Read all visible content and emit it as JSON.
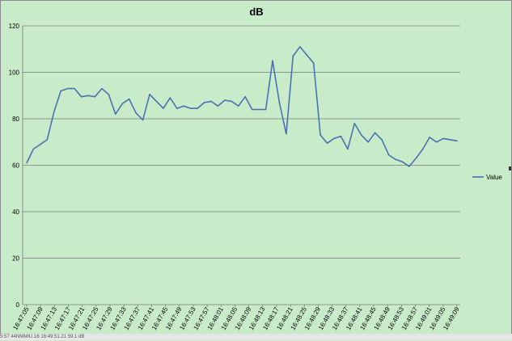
{
  "chart_data": {
    "type": "line",
    "title": "dB",
    "xlabel": "",
    "ylabel": "",
    "ylim": [
      0,
      120
    ],
    "yticks": [
      0,
      20,
      40,
      60,
      80,
      100,
      120
    ],
    "grid": true,
    "legend_position": "right",
    "x_tick_labels": [
      "16:47:05",
      "16:47:09",
      "16:47:13",
      "16:47:17",
      "16:47:21",
      "16:47:25",
      "16:47:29",
      "16:47:33",
      "16:47:37",
      "16:47:41",
      "16:47:45",
      "16:47:49",
      "16:47:53",
      "16:47:57",
      "16:48:01",
      "16:48:05",
      "16:48:09",
      "16:48:13",
      "16:48:17",
      "16:48:21",
      "16:48:25",
      "16:48:29",
      "16:48:33",
      "16:48:37",
      "16:48:41",
      "16:48:45",
      "16:48:49",
      "16:48:53",
      "16:48:57",
      "16:49:01",
      "16:49:05",
      "16:49:09"
    ],
    "series": [
      {
        "name": "Value",
        "color": "#4a72b0",
        "values": [
          61,
          67,
          69,
          71,
          83,
          92,
          93,
          93,
          89.5,
          90,
          89.5,
          93,
          90.5,
          82,
          86.5,
          88.5,
          82.5,
          79.5,
          90.5,
          87.5,
          84.5,
          89,
          84.5,
          85.5,
          84.5,
          84.5,
          87,
          87.5,
          85.5,
          88,
          87.5,
          85.5,
          89.5,
          84,
          84,
          84,
          105,
          87,
          73.5,
          107,
          111,
          107.5,
          104,
          73,
          69.5,
          71.5,
          72.5,
          67,
          78,
          73,
          70,
          74,
          71,
          64.5,
          62.5,
          61.5,
          59.5,
          63,
          67,
          72,
          70,
          71.5,
          71,
          70.5
        ]
      }
    ]
  },
  "status_strip": {
    "text": "5:57   44NMMIU.16       16:49:51.21      59.1 dB"
  }
}
